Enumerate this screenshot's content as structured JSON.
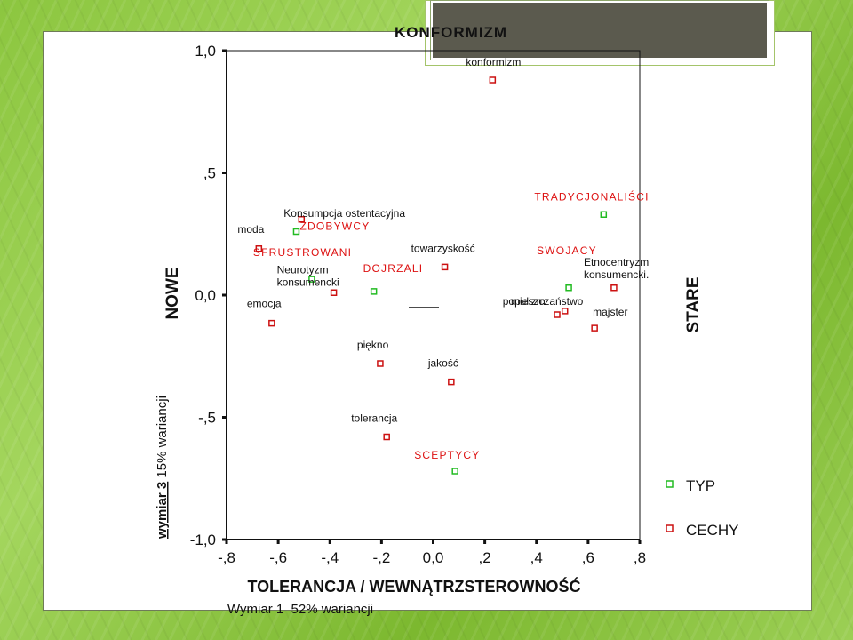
{
  "slide": {
    "title": "KONFORMIZM",
    "left_label": "NOWE",
    "right_label": "STARE",
    "bottom_label": "TOLERANCJA / WEWNĄTRZSTEROWNOŚĆ"
  },
  "chart_data": {
    "type": "scatter",
    "xlabel": "Wymiar 1  52% wariancji",
    "ylabel_bold": "wymiar 3",
    "ylabel_rest": " 15% wariancji",
    "xlim": [
      -0.8,
      0.8
    ],
    "ylim": [
      -1.0,
      1.0
    ],
    "x_ticks": [
      {
        "value": -0.8,
        "label": "-,8"
      },
      {
        "value": -0.6,
        "label": "-,6"
      },
      {
        "value": -0.4,
        "label": "-,4"
      },
      {
        "value": -0.2,
        "label": "-,2"
      },
      {
        "value": 0.0,
        "label": "0,0"
      },
      {
        "value": 0.2,
        "label": ",2"
      },
      {
        "value": 0.4,
        "label": ",4"
      },
      {
        "value": 0.6,
        "label": ",6"
      },
      {
        "value": 0.8,
        "label": ",8"
      }
    ],
    "y_ticks": [
      {
        "value": 1.0,
        "label": "1,0"
      },
      {
        "value": 0.5,
        "label": ",5"
      },
      {
        "value": 0.0,
        "label": "0,0"
      },
      {
        "value": -0.5,
        "label": "-,5"
      },
      {
        "value": -1.0,
        "label": "-1,0"
      }
    ],
    "legend_position": "bottom-right",
    "series": [
      {
        "name": "TYP",
        "color": "#22bb22",
        "label_color": "#dd1111",
        "points": [
          {
            "label": "ZDOBYWCY",
            "x": -0.53,
            "y": 0.26
          },
          {
            "label": "SFRUSTROWANI",
            "x": -0.47,
            "y": 0.065
          },
          {
            "label": "DOJRZALI",
            "x": -0.23,
            "y": 0.015
          },
          {
            "label": "TRADYCJONALIŚCI",
            "x": 0.66,
            "y": 0.33
          },
          {
            "label": "SWOJACY",
            "x": 0.525,
            "y": 0.03
          },
          {
            "label": "SCEPTYCY",
            "x": 0.085,
            "y": -0.72
          }
        ]
      },
      {
        "name": "CECHY",
        "color": "#cc1111",
        "label_color": "#111111",
        "points": [
          {
            "label": "konformizm",
            "x": 0.23,
            "y": 0.88
          },
          {
            "label": "Konsumpcja ostentacyjna",
            "x": -0.51,
            "y": 0.31
          },
          {
            "label": "moda",
            "x": -0.675,
            "y": 0.19
          },
          {
            "label": "towarzyskość",
            "x": 0.045,
            "y": 0.115
          },
          {
            "label": "Neurotyzm\nkonsumencki",
            "x": -0.385,
            "y": 0.01
          },
          {
            "label": "emocja",
            "x": -0.625,
            "y": -0.115
          },
          {
            "label": "populizm",
            "x": 0.51,
            "y": -0.065
          },
          {
            "label": "Etnocentryzm\nkonsumencki.",
            "x": 0.7,
            "y": 0.03
          },
          {
            "label": "mieszczaństwo",
            "x": 0.48,
            "y": -0.08
          },
          {
            "label": "majster",
            "x": 0.625,
            "y": -0.135
          },
          {
            "label": "piękno",
            "x": -0.205,
            "y": -0.28
          },
          {
            "label": "jakość",
            "x": 0.07,
            "y": -0.355
          },
          {
            "label": "tolerancja",
            "x": -0.18,
            "y": -0.58
          }
        ]
      }
    ]
  }
}
